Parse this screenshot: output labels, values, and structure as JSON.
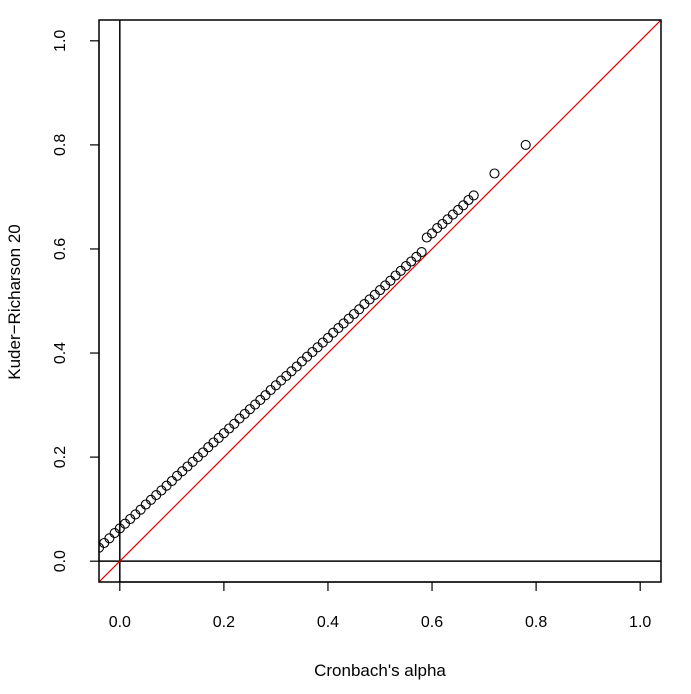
{
  "chart_data": {
    "type": "scatter",
    "title": "",
    "xlabel": "Cronbach's alpha",
    "ylabel": "Kuder−Richarson 20",
    "xlim": [
      -0.04,
      1.04
    ],
    "ylim": [
      -0.04,
      1.04
    ],
    "x_ticks": [
      0.0,
      0.2,
      0.4,
      0.6,
      0.8,
      1.0
    ],
    "y_ticks": [
      0.0,
      0.2,
      0.4,
      0.6,
      0.8,
      1.0
    ],
    "x_tick_labels": [
      "0.0",
      "0.2",
      "0.4",
      "0.6",
      "0.8",
      "1.0"
    ],
    "y_tick_labels": [
      "0.0",
      "0.2",
      "0.4",
      "0.6",
      "0.8",
      "1.0"
    ],
    "grid": false,
    "reference_lines": [
      {
        "type": "identity",
        "color": "#e00000"
      },
      {
        "type": "horizontal",
        "value": 0,
        "color": "#000000"
      },
      {
        "type": "vertical",
        "value": 0,
        "color": "#000000"
      }
    ],
    "point_style": "open-circle",
    "point_color": "#000000",
    "series": [
      {
        "x": [
          -0.04,
          -0.03,
          -0.02,
          -0.01,
          0.0,
          0.01,
          0.02,
          0.03,
          0.04,
          0.05,
          0.06,
          0.07,
          0.08,
          0.09,
          0.1,
          0.11,
          0.12,
          0.13,
          0.14,
          0.15,
          0.16,
          0.17,
          0.18,
          0.19,
          0.2,
          0.21,
          0.22,
          0.23,
          0.24,
          0.25,
          0.26,
          0.27,
          0.28,
          0.29,
          0.3,
          0.31,
          0.32,
          0.33,
          0.34,
          0.35,
          0.36,
          0.37,
          0.38,
          0.39,
          0.4,
          0.41,
          0.42,
          0.43,
          0.44,
          0.45,
          0.46,
          0.47,
          0.48,
          0.49,
          0.5,
          0.51,
          0.52,
          0.53,
          0.54,
          0.55,
          0.56,
          0.57,
          0.58,
          0.59,
          0.6,
          0.61,
          0.62,
          0.63,
          0.64,
          0.65,
          0.66,
          0.67,
          0.68,
          0.72,
          0.78
        ],
        "y": [
          0.026,
          0.035,
          0.044,
          0.054,
          0.063,
          0.072,
          0.081,
          0.09,
          0.099,
          0.109,
          0.118,
          0.127,
          0.136,
          0.145,
          0.154,
          0.164,
          0.173,
          0.182,
          0.191,
          0.2,
          0.209,
          0.219,
          0.228,
          0.237,
          0.246,
          0.255,
          0.264,
          0.274,
          0.283,
          0.292,
          0.301,
          0.31,
          0.319,
          0.329,
          0.338,
          0.347,
          0.356,
          0.365,
          0.374,
          0.384,
          0.393,
          0.402,
          0.411,
          0.42,
          0.429,
          0.439,
          0.448,
          0.457,
          0.466,
          0.475,
          0.484,
          0.494,
          0.503,
          0.512,
          0.521,
          0.53,
          0.539,
          0.549,
          0.558,
          0.567,
          0.576,
          0.585,
          0.594,
          0.622,
          0.63,
          0.64,
          0.648,
          0.657,
          0.666,
          0.675,
          0.684,
          0.694,
          0.703,
          0.745,
          0.8
        ]
      }
    ]
  }
}
